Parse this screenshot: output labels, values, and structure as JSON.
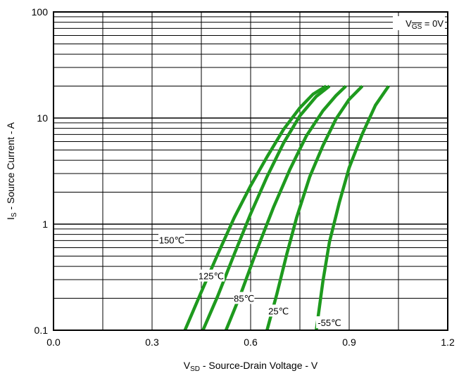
{
  "chart_data": {
    "type": "line",
    "title": "",
    "annotation": {
      "main": "V",
      "sub": "GS",
      "rest": " = 0V"
    },
    "xlabel": {
      "main": "V",
      "sub": "SD",
      "rest": " - Source-Drain Voltage - V"
    },
    "ylabel": {
      "main": "I",
      "sub": "S",
      "rest": " - Source Current - A"
    },
    "xlim": [
      0.0,
      1.2
    ],
    "ylim": [
      0.1,
      100
    ],
    "yscale": "log",
    "x_ticks": [
      {
        "value": 0.0,
        "label": "0.0"
      },
      {
        "value": 0.3,
        "label": "0.3"
      },
      {
        "value": 0.6,
        "label": "0.6"
      },
      {
        "value": 0.9,
        "label": "0.9"
      },
      {
        "value": 1.2,
        "label": "1.2"
      }
    ],
    "y_ticks": [
      {
        "value": 0.1,
        "label": "0.1"
      },
      {
        "value": 1,
        "label": "1"
      },
      {
        "value": 10,
        "label": "10"
      },
      {
        "value": 100,
        "label": "100"
      }
    ],
    "grid": true,
    "line_color": "#1e9a1e",
    "series": [
      {
        "name": "150℃",
        "label_at": [
          0.36,
          0.71
        ],
        "points": [
          [
            0.4,
            0.1
          ],
          [
            0.45,
            0.23
          ],
          [
            0.5,
            0.52
          ],
          [
            0.55,
            1.15
          ],
          [
            0.6,
            2.3
          ],
          [
            0.65,
            4.3
          ],
          [
            0.7,
            7.8
          ],
          [
            0.75,
            12.5
          ],
          [
            0.79,
            16.8
          ],
          [
            0.83,
            20
          ]
        ]
      },
      {
        "name": "125℃",
        "label_at": [
          0.48,
          0.325
        ],
        "points": [
          [
            0.455,
            0.1
          ],
          [
            0.5,
            0.21
          ],
          [
            0.55,
            0.52
          ],
          [
            0.6,
            1.25
          ],
          [
            0.65,
            2.8
          ],
          [
            0.7,
            5.8
          ],
          [
            0.75,
            10.5
          ],
          [
            0.8,
            16
          ],
          [
            0.84,
            20
          ]
        ]
      },
      {
        "name": "85℃",
        "label_at": [
          0.58,
          0.2
        ],
        "points": [
          [
            0.525,
            0.1
          ],
          [
            0.57,
            0.22
          ],
          [
            0.62,
            0.58
          ],
          [
            0.67,
            1.45
          ],
          [
            0.72,
            3.3
          ],
          [
            0.77,
            6.8
          ],
          [
            0.82,
            11.7
          ],
          [
            0.86,
            16.3
          ],
          [
            0.89,
            20
          ]
        ]
      },
      {
        "name": "25℃",
        "label_at": [
          0.685,
          0.152
        ],
        "points": [
          [
            0.65,
            0.1
          ],
          [
            0.68,
            0.22
          ],
          [
            0.71,
            0.52
          ],
          [
            0.74,
            1.15
          ],
          [
            0.78,
            2.8
          ],
          [
            0.82,
            5.5
          ],
          [
            0.86,
            9.8
          ],
          [
            0.9,
            15
          ],
          [
            0.94,
            20
          ]
        ]
      },
      {
        "name": "-55℃",
        "label_at": [
          0.84,
          0.118
        ],
        "points": [
          [
            0.8,
            0.1
          ],
          [
            0.82,
            0.29
          ],
          [
            0.84,
            0.68
          ],
          [
            0.87,
            1.6
          ],
          [
            0.9,
            3.4
          ],
          [
            0.94,
            7.1
          ],
          [
            0.98,
            13.2
          ],
          [
            1.02,
            20
          ]
        ]
      }
    ]
  }
}
